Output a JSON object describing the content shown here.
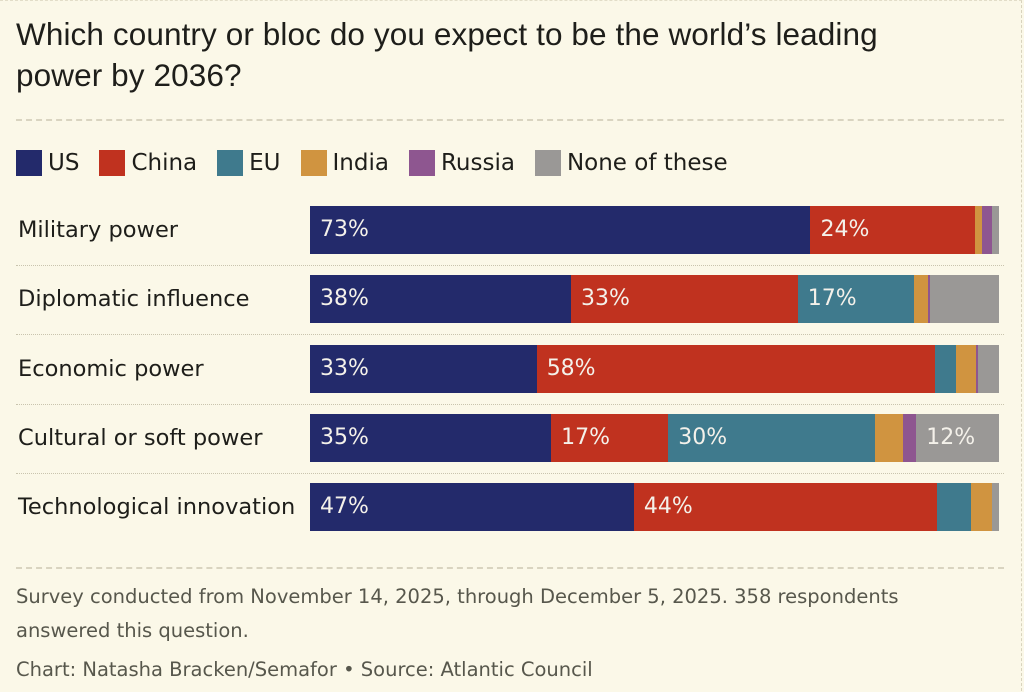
{
  "chart_data": {
    "type": "bar",
    "orientation": "horizontal",
    "stacked": true,
    "title": "Which country or bloc do you expect to be the world’s leading power by 2036?",
    "title_lines": [
      "Which country or bloc do you expect to be the world’s leading",
      "power by 2036?"
    ],
    "xlabel": "",
    "ylabel": "",
    "unit": "%",
    "xlim": [
      0,
      100
    ],
    "legend_position": "top-left",
    "categories": [
      "Military power",
      "Diplomatic influence",
      "Economic power",
      "Cultural or soft power",
      "Technological innovation"
    ],
    "series": [
      {
        "name": "US",
        "color": "#232a6b",
        "values": [
          73,
          38,
          33,
          35,
          47
        ],
        "labels": [
          "73%",
          "38%",
          "33%",
          "35%",
          "47%"
        ]
      },
      {
        "name": "China",
        "color": "#c0321f",
        "values": [
          24,
          33,
          58,
          17,
          44
        ],
        "labels": [
          "24%",
          "33%",
          "58%",
          "17%",
          "44%"
        ]
      },
      {
        "name": "EU",
        "color": "#3f7a8d",
        "values": [
          0,
          17,
          3,
          30,
          5
        ],
        "labels": [
          "",
          "17%",
          "",
          "30%",
          ""
        ]
      },
      {
        "name": "India",
        "color": "#d09440",
        "values": [
          1,
          2,
          3,
          4,
          3
        ],
        "labels": [
          "",
          "",
          "",
          "",
          ""
        ]
      },
      {
        "name": "Russia",
        "color": "#8e5690",
        "values": [
          1.5,
          0.3,
          0.3,
          2,
          0
        ],
        "labels": [
          "",
          "",
          "",
          "",
          ""
        ]
      },
      {
        "name": "None of these",
        "color": "#9a9896",
        "values": [
          1,
          10,
          3,
          12,
          1
        ],
        "labels": [
          "",
          "",
          "",
          "12%",
          ""
        ]
      }
    ],
    "notes": "Survey conducted from November 14, 2025, through December 5, 2025. 358 respondents answered this question.",
    "source": "Chart: Natasha Bracken/Semafor • Source: Atlantic Council"
  },
  "header": {
    "title_line1": "Which country or bloc do you expect to be the world’s leading",
    "title_line2": "power by 2036?"
  },
  "footer": {
    "note_line1": "Survey conducted from November 14, 2025, through December 5, 2025. 358 respondents",
    "note_line2": "answered this question.",
    "credit": "Chart: Natasha Bracken/Semafor • Source: Atlantic Council"
  }
}
